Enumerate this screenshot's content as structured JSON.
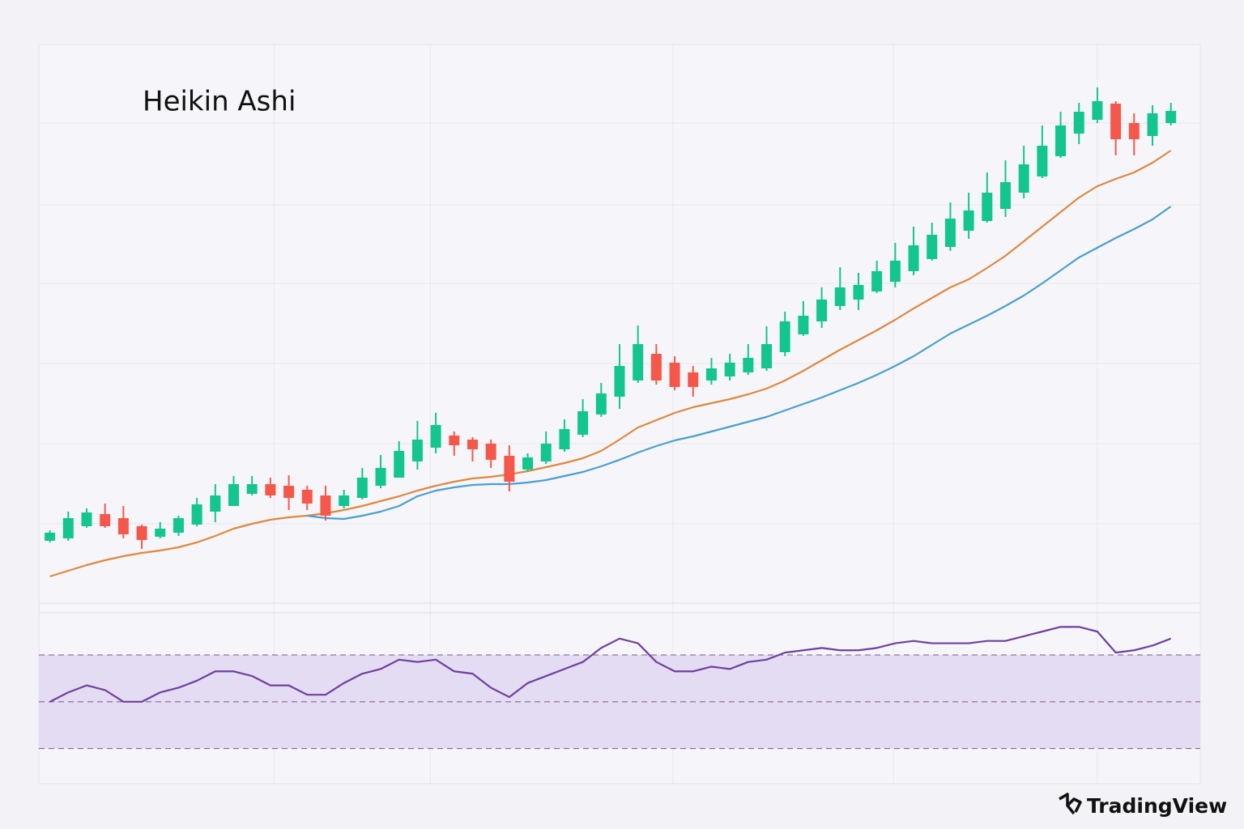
{
  "title": "Heikin Ashi",
  "brand": "TradingView",
  "chart_data": [
    {
      "type": "candlestick",
      "up_color": "#13c58f",
      "down_color": "#f5584a",
      "xlim": [
        -0.6,
        62.6
      ],
      "xticks": [
        12.2,
        20.7,
        33.9,
        45.9,
        57
      ],
      "ylim": [
        0,
        690
      ],
      "yticks": [
        98,
        197,
        296,
        395,
        492,
        593
      ],
      "grid": true,
      "tick_labels": false,
      "open": [
        77,
        80,
        95,
        110,
        105,
        95,
        82,
        87,
        97,
        113,
        120,
        135,
        147,
        145,
        140,
        133,
        120,
        130,
        145,
        155,
        175,
        192,
        207,
        202,
        197,
        182,
        165,
        175,
        190,
        208,
        233,
        255,
        275,
        308,
        297,
        285,
        275,
        280,
        285,
        290,
        310,
        332,
        348,
        367,
        375,
        385,
        397,
        410,
        425,
        440,
        460,
        472,
        487,
        507,
        527,
        552,
        580,
        597,
        617,
        593,
        577,
        593
      ],
      "high": [
        90,
        113,
        117,
        123,
        120,
        97,
        100,
        108,
        130,
        147,
        157,
        157,
        155,
        158,
        145,
        145,
        140,
        167,
        183,
        200,
        225,
        235,
        212,
        205,
        202,
        195,
        185,
        212,
        227,
        252,
        272,
        320,
        343,
        320,
        305,
        293,
        303,
        308,
        320,
        342,
        360,
        373,
        390,
        415,
        408,
        423,
        445,
        465,
        470,
        495,
        507,
        532,
        547,
        565,
        590,
        607,
        618,
        637,
        620,
        605,
        615,
        618
      ],
      "low": [
        75,
        77,
        93,
        93,
        80,
        67,
        80,
        83,
        95,
        100,
        120,
        133,
        130,
        115,
        115,
        102,
        117,
        128,
        142,
        155,
        165,
        185,
        182,
        175,
        167,
        138,
        162,
        172,
        187,
        205,
        230,
        240,
        272,
        270,
        263,
        255,
        270,
        275,
        282,
        287,
        305,
        330,
        340,
        362,
        362,
        383,
        390,
        405,
        423,
        435,
        450,
        470,
        477,
        500,
        525,
        550,
        567,
        593,
        553,
        553,
        565,
        590
      ],
      "close": [
        87,
        105,
        112,
        95,
        85,
        78,
        92,
        105,
        122,
        133,
        147,
        147,
        133,
        130,
        123,
        108,
        133,
        155,
        167,
        188,
        202,
        220,
        195,
        190,
        177,
        150,
        180,
        197,
        215,
        237,
        259,
        293,
        320,
        275,
        267,
        267,
        290,
        297,
        303,
        320,
        348,
        355,
        375,
        390,
        393,
        410,
        423,
        442,
        455,
        475,
        485,
        507,
        520,
        542,
        565,
        590,
        607,
        620,
        573,
        573,
        605,
        608
      ],
      "series": [
        {
          "color": "#e0873f",
          "values": [
            33,
            40,
            47,
            53,
            58,
            62,
            65,
            69,
            75,
            83,
            92,
            98,
            103,
            106,
            108,
            111,
            115,
            120,
            126,
            132,
            139,
            145,
            150,
            154,
            156,
            159,
            163,
            168,
            173,
            179,
            188,
            202,
            217,
            226,
            235,
            242,
            247,
            252,
            258,
            265,
            275,
            287,
            300,
            313,
            325,
            337,
            350,
            364,
            377,
            390,
            400,
            414,
            429,
            447,
            465,
            483,
            501,
            515,
            524,
            532,
            544,
            559
          ]
        },
        {
          "color": "#4a9fd0",
          "values": [
            null,
            null,
            null,
            null,
            null,
            null,
            null,
            null,
            null,
            null,
            null,
            null,
            null,
            null,
            108,
            105,
            104,
            108,
            113,
            120,
            132,
            139,
            143,
            146,
            147,
            147,
            149,
            152,
            157,
            162,
            169,
            177,
            186,
            194,
            201,
            206,
            212,
            218,
            224,
            230,
            238,
            246,
            254,
            263,
            272,
            282,
            293,
            305,
            319,
            333,
            344,
            355,
            367,
            380,
            395,
            411,
            427,
            439,
            451,
            462,
            474,
            490
          ]
        }
      ]
    },
    {
      "type": "line",
      "color": "#6f3fa0",
      "band_color": "#e3dcf2",
      "xlim": [
        -0.6,
        62.6
      ],
      "ylim": [
        15,
        88
      ],
      "levels": [
        70,
        50,
        30
      ],
      "values": [
        50,
        54,
        57,
        55,
        50,
        50,
        54,
        56,
        59,
        63,
        63,
        61,
        57,
        57,
        53,
        53,
        58,
        62,
        64,
        68,
        67,
        68,
        63,
        62,
        56,
        52,
        58,
        61,
        64,
        67,
        73,
        77,
        75,
        67,
        63,
        63,
        65,
        64,
        67,
        68,
        71,
        72,
        73,
        72,
        72,
        73,
        75,
        76,
        75,
        75,
        75,
        76,
        76,
        78,
        80,
        82,
        82,
        80,
        71,
        72,
        74,
        77
      ]
    }
  ]
}
